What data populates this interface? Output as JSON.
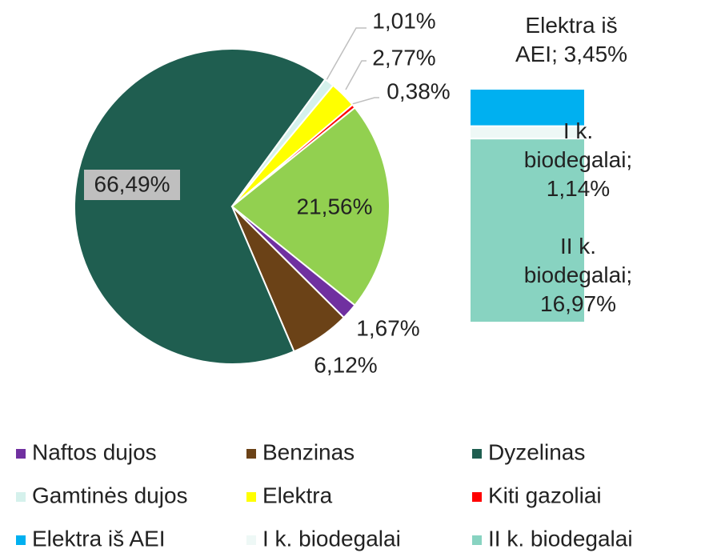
{
  "chart_data": {
    "type": "pie_of_bar",
    "pie": {
      "categories": [
        "Naftos dujos",
        "Benzinas",
        "Dyzelinas",
        "Gamtinės dujos",
        "Elektra",
        "Kiti gazoliai",
        null
      ],
      "values": [
        1.67,
        6.12,
        66.49,
        1.01,
        2.77,
        0.38,
        21.56
      ],
      "value_labels": [
        "1,67%",
        "6,12%",
        "66,49%",
        "1,01%",
        "2,77%",
        "0,38%",
        "21,56%"
      ],
      "colors": [
        "#7030a0",
        "#6b4217",
        "#1f5e50",
        "#d5f1ec",
        "#ffff00",
        "#ff0000",
        "#92d050"
      ]
    },
    "bar": {
      "categories": [
        "Elektra iš AEI",
        "I k. biodegalai",
        "II k. biodegalai"
      ],
      "values": [
        3.45,
        1.14,
        16.97
      ],
      "value_labels": [
        "Elektra iš AEI; 3,45%",
        "I k. biodegalai; 1,14%",
        "II k. biodegalai; 16,97%"
      ],
      "colors": [
        "#00b0f0",
        "#eef8f6",
        "#88d3c1"
      ]
    },
    "legend": "bottom"
  }
}
